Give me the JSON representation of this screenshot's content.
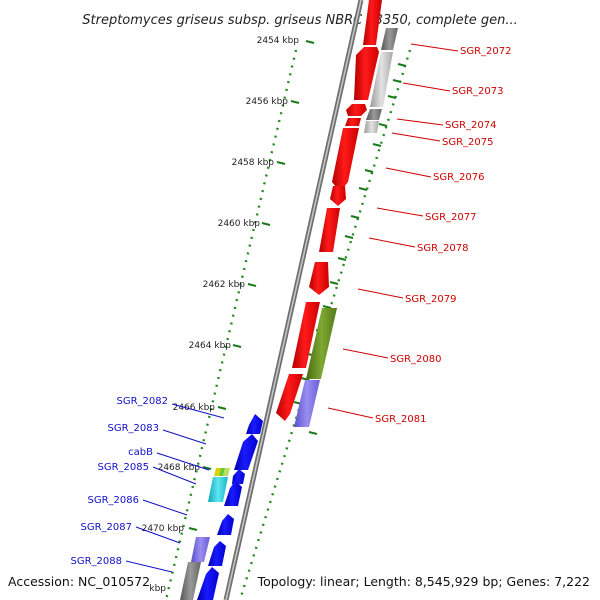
{
  "title": "Streptomyces griseus subsp. griseus NBRC 13350, complete gen...",
  "footer": {
    "accession": "Accession: NC_010572",
    "summary": "Topology: linear; Length: 8,545,929 bp; Genes: 7,222"
  },
  "colors": {
    "forward_gene": "#ff0000",
    "reverse_gene": "#0000ee",
    "rna_gene": "#6b8e23",
    "pseudo_gene": "#7b68ee",
    "gap_gene": "#bbbbbb",
    "tick": "#228b22",
    "label_red": "#d00000",
    "label_blue": "#1010c8"
  },
  "ticks": [
    {
      "label": "2454 kbp"
    },
    {
      "label": "2456 kbp"
    },
    {
      "label": "2458 kbp"
    },
    {
      "label": "2460 kbp"
    },
    {
      "label": "2462 kbp"
    },
    {
      "label": "2464 kbp"
    },
    {
      "label": "2466 kbp"
    },
    {
      "label": "2468 kbp"
    },
    {
      "label": "2470 kbp"
    },
    {
      "label": "kbp"
    }
  ],
  "forward_labels": [
    "SGR_2072",
    "SGR_2073",
    "SGR_2074",
    "SGR_2075",
    "SGR_2076",
    "SGR_2077",
    "SGR_2078",
    "SGR_2079",
    "SGR_2080",
    "SGR_2081"
  ],
  "reverse_labels": [
    "SGR_2082",
    "SGR_2083",
    "cabB",
    "SGR_2085",
    "SGR_2086",
    "SGR_2087",
    "SGR_2088"
  ]
}
